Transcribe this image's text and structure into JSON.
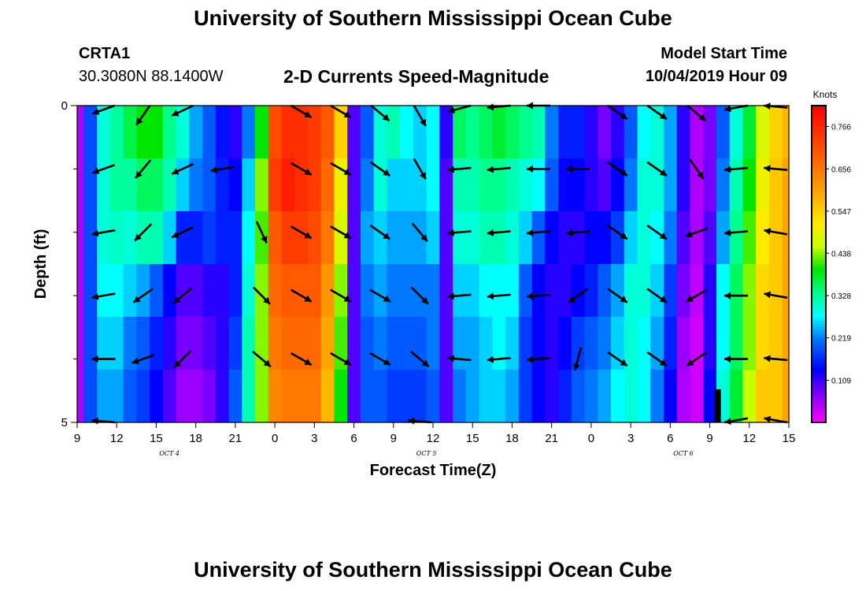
{
  "header": {
    "top_title": "University of Southern Mississippi Ocean Cube",
    "station_id": "CRTA1",
    "coordinates": "30.3080N 88.1400W",
    "chart_title": "2-D Currents Speed-Magnitude",
    "model_label": "Model Start Time",
    "model_time": "10/04/2019 Hour 09"
  },
  "footer": {
    "bottom_title": "University of Southern Mississippi Ocean Cube"
  },
  "chart_data": {
    "type": "heatmap",
    "title": "2-D Currents Speed-Magnitude",
    "xlabel": "Forecast Time(Z)",
    "ylabel": "Depth (ft)",
    "x_start_hour": 9,
    "x_end_hour": 63,
    "x_ticks": [
      "9",
      "12",
      "15",
      "18",
      "21",
      "0",
      "3",
      "6",
      "9",
      "12",
      "15",
      "18",
      "21",
      "0",
      "3",
      "6",
      "9",
      "12",
      "15"
    ],
    "x_tick_hours": [
      9,
      12,
      15,
      18,
      21,
      24,
      27,
      30,
      33,
      36,
      39,
      42,
      45,
      48,
      51,
      54,
      57,
      60,
      63
    ],
    "date_labels": [
      {
        "text": "OCT 4",
        "hour": 16
      },
      {
        "text": "OCT 5",
        "hour": 35.5
      },
      {
        "text": "OCT 6",
        "hour": 55
      }
    ],
    "y_range": [
      0,
      5
    ],
    "y_ticks": [
      "0",
      "5"
    ],
    "y_tick_values": [
      0,
      5
    ],
    "y_minor_ticks": [
      1,
      2,
      3,
      4
    ],
    "colorbar": {
      "label": "Knots",
      "min": 0.0,
      "max": 0.82,
      "tick_labels": [
        "0.766",
        "0.656",
        "0.547",
        "0.438",
        "0.328",
        "0.219",
        "0.109"
      ],
      "tick_values": [
        0.766,
        0.656,
        0.547,
        0.438,
        0.328,
        0.219,
        0.109
      ]
    },
    "depth_rows": [
      0,
      1,
      2,
      3,
      4,
      5
    ],
    "hours": [
      9,
      10,
      11,
      12,
      13,
      14,
      15,
      16,
      17,
      18,
      19,
      20,
      21,
      22,
      23,
      24,
      25,
      26,
      27,
      28,
      29,
      30,
      31,
      32,
      33,
      34,
      35,
      36,
      37,
      38,
      39,
      40,
      41,
      42,
      43,
      44,
      45,
      46,
      47,
      48,
      49,
      50,
      51,
      52,
      53,
      54,
      55,
      56,
      57,
      58,
      59,
      60,
      61,
      62,
      63
    ],
    "speed": [
      [
        0.05,
        0.19,
        0.3,
        0.33,
        0.37,
        0.4,
        0.4,
        0.34,
        0.3,
        0.24,
        0.2,
        0.15,
        0.12,
        0.22,
        0.4,
        0.72,
        0.76,
        0.76,
        0.74,
        0.7,
        0.55,
        0.1,
        0.2,
        0.3,
        0.32,
        0.28,
        0.26,
        0.28,
        0.12,
        0.36,
        0.34,
        0.36,
        0.38,
        0.36,
        0.34,
        0.32,
        0.22,
        0.16,
        0.16,
        0.12,
        0.08,
        0.12,
        0.2,
        0.28,
        0.3,
        0.24,
        0.12,
        0.05,
        0.08,
        0.2,
        0.3,
        0.38,
        0.48,
        0.55,
        0.58
      ],
      [
        0.05,
        0.19,
        0.3,
        0.33,
        0.33,
        0.36,
        0.36,
        0.32,
        0.26,
        0.22,
        0.2,
        0.16,
        0.14,
        0.26,
        0.44,
        0.74,
        0.78,
        0.76,
        0.74,
        0.68,
        0.5,
        0.1,
        0.22,
        0.3,
        0.26,
        0.26,
        0.26,
        0.28,
        0.1,
        0.32,
        0.32,
        0.34,
        0.34,
        0.32,
        0.3,
        0.28,
        0.2,
        0.14,
        0.14,
        0.12,
        0.1,
        0.14,
        0.22,
        0.3,
        0.3,
        0.24,
        0.12,
        0.05,
        0.08,
        0.22,
        0.32,
        0.4,
        0.5,
        0.56,
        0.6
      ],
      [
        0.05,
        0.19,
        0.3,
        0.31,
        0.3,
        0.32,
        0.32,
        0.26,
        0.16,
        0.16,
        0.18,
        0.16,
        0.16,
        0.28,
        0.42,
        0.7,
        0.74,
        0.74,
        0.72,
        0.66,
        0.48,
        0.1,
        0.24,
        0.26,
        0.24,
        0.24,
        0.24,
        0.26,
        0.1,
        0.3,
        0.3,
        0.32,
        0.32,
        0.3,
        0.26,
        0.2,
        0.14,
        0.12,
        0.12,
        0.14,
        0.14,
        0.18,
        0.26,
        0.3,
        0.28,
        0.22,
        0.1,
        0.05,
        0.1,
        0.24,
        0.34,
        0.42,
        0.52,
        0.56,
        0.6
      ],
      [
        0.05,
        0.19,
        0.28,
        0.28,
        0.26,
        0.24,
        0.2,
        0.14,
        0.1,
        0.1,
        0.12,
        0.12,
        0.16,
        0.3,
        0.44,
        0.68,
        0.7,
        0.7,
        0.7,
        0.62,
        0.44,
        0.1,
        0.22,
        0.24,
        0.22,
        0.22,
        0.22,
        0.22,
        0.1,
        0.26,
        0.26,
        0.28,
        0.28,
        0.28,
        0.2,
        0.14,
        0.12,
        0.12,
        0.14,
        0.16,
        0.2,
        0.24,
        0.3,
        0.3,
        0.26,
        0.18,
        0.08,
        0.04,
        0.12,
        0.28,
        0.36,
        0.44,
        0.54,
        0.56,
        0.6
      ],
      [
        0.05,
        0.19,
        0.26,
        0.26,
        0.22,
        0.2,
        0.16,
        0.12,
        0.08,
        0.08,
        0.1,
        0.12,
        0.18,
        0.32,
        0.44,
        0.66,
        0.68,
        0.68,
        0.68,
        0.6,
        0.42,
        0.1,
        0.2,
        0.22,
        0.2,
        0.2,
        0.2,
        0.22,
        0.1,
        0.24,
        0.24,
        0.26,
        0.28,
        0.26,
        0.18,
        0.14,
        0.12,
        0.14,
        0.18,
        0.2,
        0.22,
        0.26,
        0.3,
        0.28,
        0.24,
        0.16,
        0.06,
        0.03,
        0.12,
        0.28,
        0.36,
        0.44,
        0.54,
        0.56,
        0.6
      ],
      [
        0.05,
        0.19,
        0.24,
        0.24,
        0.2,
        0.18,
        0.14,
        0.1,
        0.06,
        0.06,
        0.08,
        0.12,
        0.2,
        0.32,
        0.44,
        0.64,
        0.66,
        0.66,
        0.66,
        0.58,
        0.4,
        0.1,
        0.2,
        0.2,
        0.18,
        0.18,
        0.18,
        0.2,
        0.1,
        0.22,
        0.24,
        0.26,
        0.26,
        0.24,
        0.18,
        0.14,
        0.12,
        0.16,
        0.2,
        0.22,
        0.24,
        0.28,
        0.3,
        0.28,
        0.22,
        0.14,
        0.05,
        0.03,
        0.14,
        0.3,
        0.38,
        0.46,
        0.56,
        0.56,
        0.6
      ]
    ],
    "vector_hours": [
      11,
      14,
      17,
      20,
      23,
      26,
      29,
      32,
      35,
      38,
      41,
      44,
      47,
      50,
      53,
      56,
      59,
      62
    ],
    "vector_depths": [
      0,
      1,
      2,
      3,
      4,
      5
    ],
    "vector_directions_deg": [
      [
        200,
        235,
        205,
        null,
        null,
        330,
        330,
        320,
        300,
        195,
        185,
        180,
        null,
        325,
        325,
        320,
        190,
        175
      ],
      [
        200,
        230,
        205,
        190,
        null,
        330,
        330,
        325,
        300,
        185,
        185,
        180,
        180,
        325,
        325,
        305,
        185,
        175
      ],
      [
        190,
        225,
        205,
        null,
        295,
        330,
        330,
        325,
        310,
        185,
        185,
        185,
        185,
        325,
        325,
        200,
        185,
        170
      ],
      [
        190,
        215,
        220,
        null,
        315,
        330,
        330,
        330,
        315,
        185,
        185,
        185,
        215,
        325,
        325,
        210,
        180,
        170
      ],
      [
        180,
        200,
        225,
        null,
        320,
        330,
        330,
        330,
        320,
        175,
        185,
        185,
        255,
        325,
        325,
        215,
        180,
        175
      ],
      [
        175,
        null,
        null,
        null,
        null,
        null,
        null,
        null,
        175,
        null,
        null,
        null,
        null,
        null,
        null,
        null,
        190,
        170
      ]
    ],
    "legend_position": "right"
  }
}
